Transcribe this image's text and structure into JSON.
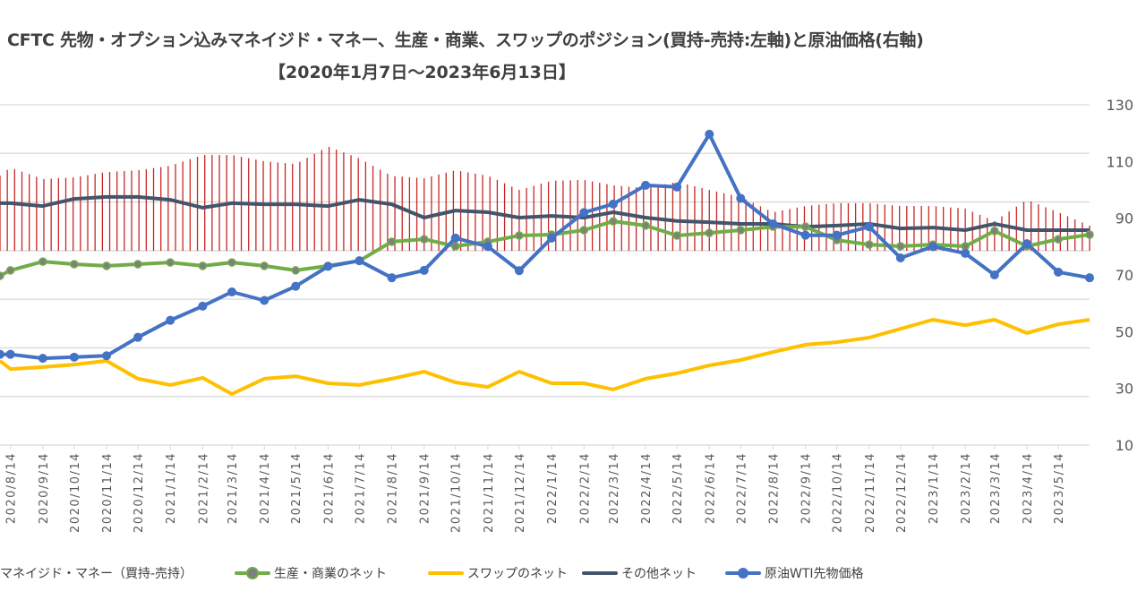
{
  "title": "CFTC  先物・オプション込みマネイジド・マネー、生産・商業、スワップのポジション(買持-売持:左軸)と原油価格(右軸)",
  "subtitle": "【2020年1月7日～2023年6月13日】",
  "legend": [
    {
      "label": "マネイジド・マネー（買持-売持）",
      "color": "#C00000"
    },
    {
      "label": "生産・商業のネット",
      "color": "#70AD47",
      "marker": "#7F7F7F"
    },
    {
      "label": "スワップのネット",
      "color": "#FFC000"
    },
    {
      "label": "その他ネット",
      "color": "#44546A"
    },
    {
      "label": "原油WTI先物価格",
      "color": "#4472C4",
      "marker": "#4472C4"
    }
  ],
  "chart_data": {
    "type": "bar+line",
    "title": "CFTC  先物・オプション込みマネイジド・マネー、生産・商業、スワップのポジション(買持-売持:左軸)と原油価格(右軸)",
    "right_axis": {
      "ticks": [
        10,
        30,
        50,
        70,
        90,
        110,
        130
      ],
      "range": [
        10,
        130
      ]
    },
    "left_axis": {
      "visible": false
    },
    "grid": true,
    "legend_position": "bottom",
    "x_ticks": [
      "2020/8/14",
      "2020/9/14",
      "2020/10/14",
      "2020/11/14",
      "2020/12/14",
      "2021/1/14",
      "2021/2/14",
      "2021/3/14",
      "2021/4/14",
      "2021/5/14",
      "2021/6/14",
      "2021/7/14",
      "2021/8/14",
      "2021/9/14",
      "2021/10/14",
      "2021/11/14",
      "2021/12/14",
      "2022/1/14",
      "2022/2/14",
      "2022/3/14",
      "2022/4/14",
      "2022/5/14",
      "2022/6/14",
      "2022/7/14",
      "2022/8/14",
      "2022/9/14",
      "2022/10/14",
      "2022/11/14",
      "2022/12/14",
      "2023/1/14",
      "2023/2/14",
      "2023/3/14",
      "2023/4/14",
      "2023/5/14"
    ],
    "x_range": [
      "2020/8/4",
      "2023/6/13"
    ],
    "dates": [
      "2020/8/4",
      "2020/8/14",
      "2020/9/14",
      "2020/10/14",
      "2020/11/14",
      "2020/12/14",
      "2021/1/14",
      "2021/2/14",
      "2021/3/14",
      "2021/4/14",
      "2021/5/14",
      "2021/6/14",
      "2021/7/14",
      "2021/8/14",
      "2021/9/14",
      "2021/10/14",
      "2021/11/14",
      "2021/12/14",
      "2022/1/14",
      "2022/2/14",
      "2022/3/14",
      "2022/4/14",
      "2022/5/14",
      "2022/6/14",
      "2022/7/14",
      "2022/8/14",
      "2022/9/14",
      "2022/10/14",
      "2022/11/14",
      "2022/12/14",
      "2023/1/14",
      "2023/2/14",
      "2023/3/14",
      "2023/4/14",
      "2023/5/14",
      "2023/6/13"
    ],
    "series": [
      {
        "name": "マネイジド・マネー（買持-売持）",
        "kind": "bar",
        "color": "#C00000",
        "base": 78.5,
        "values": [
          105,
          107.9,
          103.8,
          104.4,
          106.3,
          106.9,
          108.5,
          112.3,
          112.3,
          110.1,
          109.1,
          115.3,
          111.1,
          104.9,
          104.1,
          106.9,
          105.0,
          100.0,
          103.2,
          103.5,
          101.6,
          100.6,
          102.8,
          100.0,
          97.5,
          92.1,
          94.3,
          95.3,
          95.3,
          94.3,
          94.3,
          93.4,
          89.0,
          96.5,
          92.1,
          87.4
        ]
      },
      {
        "name": "生産・商業のネット",
        "kind": "line",
        "color": "#70AD47",
        "marker": "#7F7F7F",
        "values": [
          69.7,
          71.6,
          74.7,
          73.8,
          73.2,
          73.8,
          74.4,
          73.2,
          74.4,
          73.2,
          71.6,
          73.2,
          75.0,
          81.7,
          82.6,
          80.1,
          81.7,
          83.9,
          84.2,
          85.8,
          88.9,
          87.4,
          83.9,
          84.8,
          85.8,
          87.0,
          87.0,
          82.3,
          80.7,
          80.1,
          80.7,
          80.1,
          85.5,
          80.1,
          82.6,
          84.2
        ]
      },
      {
        "name": "スワップのネット",
        "kind": "line",
        "color": "#FFC000",
        "values": [
          39.7,
          36.8,
          37.5,
          38.4,
          39.7,
          33.4,
          31.2,
          33.7,
          28.0,
          33.4,
          34.3,
          31.8,
          31.2,
          33.4,
          35.9,
          32.1,
          30.5,
          35.9,
          31.8,
          31.8,
          29.6,
          33.4,
          35.3,
          38.1,
          40.0,
          42.8,
          45.4,
          46.3,
          47.9,
          51.0,
          54.2,
          52.3,
          54.2,
          49.5,
          52.6,
          54.2
        ]
      },
      {
        "name": "その他ネット",
        "kind": "line",
        "color": "#44546A",
        "values": [
          95.3,
          95.3,
          94.3,
          96.8,
          97.5,
          97.5,
          96.5,
          93.7,
          95.3,
          94.9,
          94.9,
          94.3,
          96.5,
          94.9,
          90.2,
          92.7,
          92.1,
          90.2,
          90.8,
          90.2,
          92.1,
          90.2,
          89.0,
          88.6,
          88.0,
          88.0,
          87.0,
          87.4,
          88.0,
          86.4,
          86.7,
          85.8,
          88.0,
          85.8,
          85.8,
          85.8
        ]
      },
      {
        "name": "原油WTI先物価格",
        "kind": "line",
        "color": "#4472C4",
        "marker": "#4472C4",
        "values": [
          42,
          42,
          40.6,
          41,
          41.5,
          48,
          54,
          59,
          64,
          61,
          66,
          73,
          75,
          69,
          71.6,
          83,
          80,
          71.5,
          83,
          92,
          95,
          101.6,
          101,
          119.6,
          97,
          88,
          84,
          84,
          87,
          76,
          80,
          77.6,
          70,
          81,
          71,
          69
        ]
      }
    ]
  }
}
